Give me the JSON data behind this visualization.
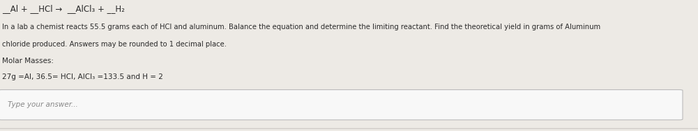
{
  "bg_color": "#e8e0d8",
  "content_bg": "#edeae5",
  "equation_line": "__Al + __HCl →  __AlCl₃ + __H₂",
  "body_text_line1": "In a lab a chemist reacts 55.5 grams each of HCl and aluminum. Balance the equation and determine the limiting reactant. Find the theoretical yield in grams of Aluminum",
  "body_text_line2": "chloride produced. Answers may be rounded to 1 decimal place.",
  "molar_masses_label": "Molar Masses:",
  "molar_masses_values": "27g =Al, 36.5= HCl, AlCl₃ =133.5 and H = 2",
  "answer_placeholder": "Type your answer...",
  "equation_fontsize": 8.5,
  "body_fontsize": 7.2,
  "molar_fontsize": 7.5,
  "answer_fontsize": 7.5,
  "text_color": "#2a2a2a",
  "placeholder_color": "#888888",
  "box_edge_color": "#bbbbbb",
  "box_face_color": "#f8f8f8",
  "bottom_bar_color": "#d0ccc8",
  "right_bar_color": "#d8d4d0"
}
